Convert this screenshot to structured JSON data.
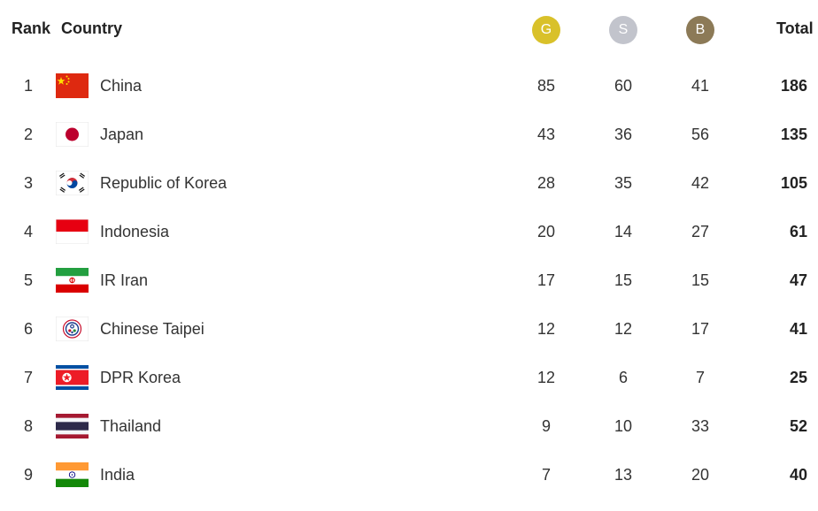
{
  "header": {
    "rank_label": "Rank",
    "country_label": "Country",
    "gold_label": "G",
    "silver_label": "S",
    "bronze_label": "B",
    "total_label": "Total"
  },
  "colors": {
    "gold": "#d9c12a",
    "silver": "#c2c4cc",
    "bronze": "#8c7a57"
  },
  "rows": [
    {
      "rank": "1",
      "country": "China",
      "gold": "85",
      "silver": "60",
      "bronze": "41",
      "total": "186",
      "flag_icon": "china-flag-icon"
    },
    {
      "rank": "2",
      "country": "Japan",
      "gold": "43",
      "silver": "36",
      "bronze": "56",
      "total": "135",
      "flag_icon": "japan-flag-icon"
    },
    {
      "rank": "3",
      "country": "Republic of Korea",
      "gold": "28",
      "silver": "35",
      "bronze": "42",
      "total": "105",
      "flag_icon": "korea-flag-icon"
    },
    {
      "rank": "4",
      "country": "Indonesia",
      "gold": "20",
      "silver": "14",
      "bronze": "27",
      "total": "61",
      "flag_icon": "indonesia-flag-icon"
    },
    {
      "rank": "5",
      "country": "IR Iran",
      "gold": "17",
      "silver": "15",
      "bronze": "15",
      "total": "47",
      "flag_icon": "iran-flag-icon"
    },
    {
      "rank": "6",
      "country": "Chinese Taipei",
      "gold": "12",
      "silver": "12",
      "bronze": "17",
      "total": "41",
      "flag_icon": "chinese-taipei-flag-icon"
    },
    {
      "rank": "7",
      "country": "DPR Korea",
      "gold": "12",
      "silver": "6",
      "bronze": "7",
      "total": "25",
      "flag_icon": "dpr-korea-flag-icon"
    },
    {
      "rank": "8",
      "country": "Thailand",
      "gold": "9",
      "silver": "10",
      "bronze": "33",
      "total": "52",
      "flag_icon": "thailand-flag-icon"
    },
    {
      "rank": "9",
      "country": "India",
      "gold": "7",
      "silver": "13",
      "bronze": "20",
      "total": "40",
      "flag_icon": "india-flag-icon"
    }
  ]
}
